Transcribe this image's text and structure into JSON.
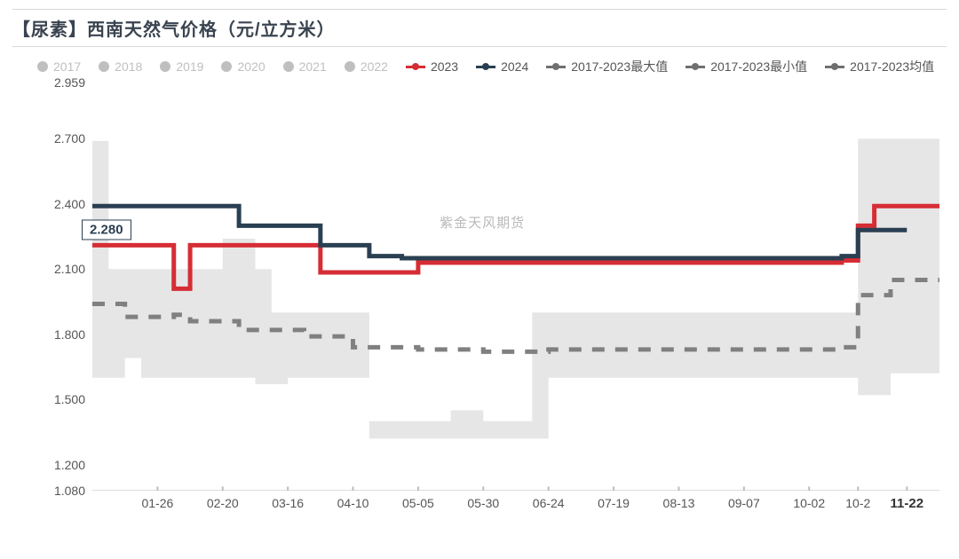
{
  "title": "【尿素】西南天然气价格（元/立方米）",
  "watermark": "紫金天风期货",
  "legend": {
    "hidden_color": "#bfbfbf",
    "hidden": [
      "2017",
      "2018",
      "2019",
      "2020",
      "2021",
      "2022"
    ],
    "series": [
      {
        "label": "2023",
        "color": "#d62d35"
      },
      {
        "label": "2024",
        "color": "#2a3f52"
      },
      {
        "label": "2017-2023最大值",
        "color": "#6f6f6f"
      },
      {
        "label": "2017-2023最小值",
        "color": "#6f6f6f"
      },
      {
        "label": "2017-2023均值",
        "color": "#6f6f6f"
      }
    ]
  },
  "chart": {
    "type": "line-step",
    "background": "#ffffff",
    "band_fill": "#e6e6e6",
    "plot_border_color": "#cccccc",
    "axis_line_color": "#bbbbbb",
    "y": {
      "min": 1.08,
      "max": 2.959,
      "ticks": [
        2.959,
        2.7,
        2.4,
        2.1,
        1.8,
        1.5,
        1.2,
        1.08
      ],
      "tick_fontsize": 14,
      "tick_color": "#555555"
    },
    "x": {
      "min": 0,
      "max": 52,
      "ticks": [
        {
          "pos": 4,
          "label": "01-26"
        },
        {
          "pos": 8,
          "label": "02-20"
        },
        {
          "pos": 12,
          "label": "03-16"
        },
        {
          "pos": 16,
          "label": "04-10"
        },
        {
          "pos": 20,
          "label": "05-05"
        },
        {
          "pos": 24,
          "label": "05-30"
        },
        {
          "pos": 28,
          "label": "06-24"
        },
        {
          "pos": 32,
          "label": "07-19"
        },
        {
          "pos": 36,
          "label": "08-13"
        },
        {
          "pos": 40,
          "label": "09-07"
        },
        {
          "pos": 44,
          "label": "10-02"
        },
        {
          "pos": 47,
          "label": "10-2"
        },
        {
          "pos": 50,
          "label": "11-22",
          "bold": true
        }
      ]
    },
    "value_badge": {
      "value": "2.280",
      "y": 2.28
    },
    "series_style": {
      "2023": {
        "color": "#d62d35",
        "width": 2.5,
        "step": true
      },
      "2024": {
        "color": "#2a3f52",
        "width": 2.5,
        "step": true
      },
      "range": {
        "fill": "#e6e6e6"
      },
      "mean": {
        "color": "#808080",
        "width": 2.5,
        "dash": "7,6",
        "step": true
      }
    },
    "data": {
      "max_band": [
        [
          0,
          2.69
        ],
        [
          1,
          2.69
        ],
        [
          1,
          2.1
        ],
        [
          8,
          2.1
        ],
        [
          8,
          2.24
        ],
        [
          10,
          2.24
        ],
        [
          10,
          2.1
        ],
        [
          11,
          2.1
        ],
        [
          11,
          1.9
        ],
        [
          17,
          1.9
        ],
        [
          17,
          1.4
        ],
        [
          22,
          1.4
        ],
        [
          22,
          1.45
        ],
        [
          24,
          1.45
        ],
        [
          24,
          1.4
        ],
        [
          27,
          1.4
        ],
        [
          27,
          1.9
        ],
        [
          47,
          1.9
        ],
        [
          47,
          2.7
        ],
        [
          52,
          2.7
        ]
      ],
      "min_band": [
        [
          0,
          1.6
        ],
        [
          2,
          1.6
        ],
        [
          2,
          1.69
        ],
        [
          3,
          1.69
        ],
        [
          3,
          1.6
        ],
        [
          10,
          1.6
        ],
        [
          10,
          1.57
        ],
        [
          12,
          1.57
        ],
        [
          12,
          1.6
        ],
        [
          17,
          1.6
        ],
        [
          17,
          1.32
        ],
        [
          28,
          1.32
        ],
        [
          28,
          1.6
        ],
        [
          47,
          1.6
        ],
        [
          47,
          1.52
        ],
        [
          49,
          1.52
        ],
        [
          49,
          1.62
        ],
        [
          52,
          1.62
        ]
      ],
      "mean": [
        [
          0,
          1.94
        ],
        [
          2,
          1.94
        ],
        [
          2,
          1.88
        ],
        [
          5,
          1.88
        ],
        [
          5,
          1.89
        ],
        [
          6,
          1.89
        ],
        [
          6,
          1.86
        ],
        [
          9,
          1.86
        ],
        [
          9,
          1.82
        ],
        [
          13,
          1.82
        ],
        [
          13,
          1.79
        ],
        [
          16,
          1.79
        ],
        [
          16,
          1.74
        ],
        [
          20,
          1.74
        ],
        [
          20,
          1.73
        ],
        [
          24,
          1.73
        ],
        [
          24,
          1.72
        ],
        [
          28,
          1.72
        ],
        [
          28,
          1.73
        ],
        [
          46,
          1.73
        ],
        [
          46,
          1.74
        ],
        [
          47,
          1.74
        ],
        [
          47,
          1.98
        ],
        [
          49,
          1.98
        ],
        [
          49,
          2.05
        ],
        [
          52,
          2.05
        ]
      ],
      "y2023": [
        [
          0,
          2.21
        ],
        [
          5,
          2.21
        ],
        [
          5,
          2.01
        ],
        [
          6,
          2.01
        ],
        [
          6,
          2.21
        ],
        [
          14,
          2.21
        ],
        [
          14,
          2.085
        ],
        [
          20,
          2.085
        ],
        [
          20,
          2.13
        ],
        [
          46,
          2.13
        ],
        [
          46,
          2.14
        ],
        [
          47,
          2.14
        ],
        [
          47,
          2.3
        ],
        [
          48,
          2.3
        ],
        [
          48,
          2.39
        ],
        [
          52,
          2.39
        ]
      ],
      "y2024": [
        [
          0,
          2.39
        ],
        [
          9,
          2.39
        ],
        [
          9,
          2.3
        ],
        [
          14,
          2.3
        ],
        [
          14,
          2.21
        ],
        [
          17,
          2.21
        ],
        [
          17,
          2.16
        ],
        [
          19,
          2.16
        ],
        [
          19,
          2.15
        ],
        [
          46,
          2.15
        ],
        [
          46,
          2.16
        ],
        [
          47,
          2.16
        ],
        [
          47,
          2.28
        ],
        [
          50,
          2.28
        ]
      ]
    }
  }
}
